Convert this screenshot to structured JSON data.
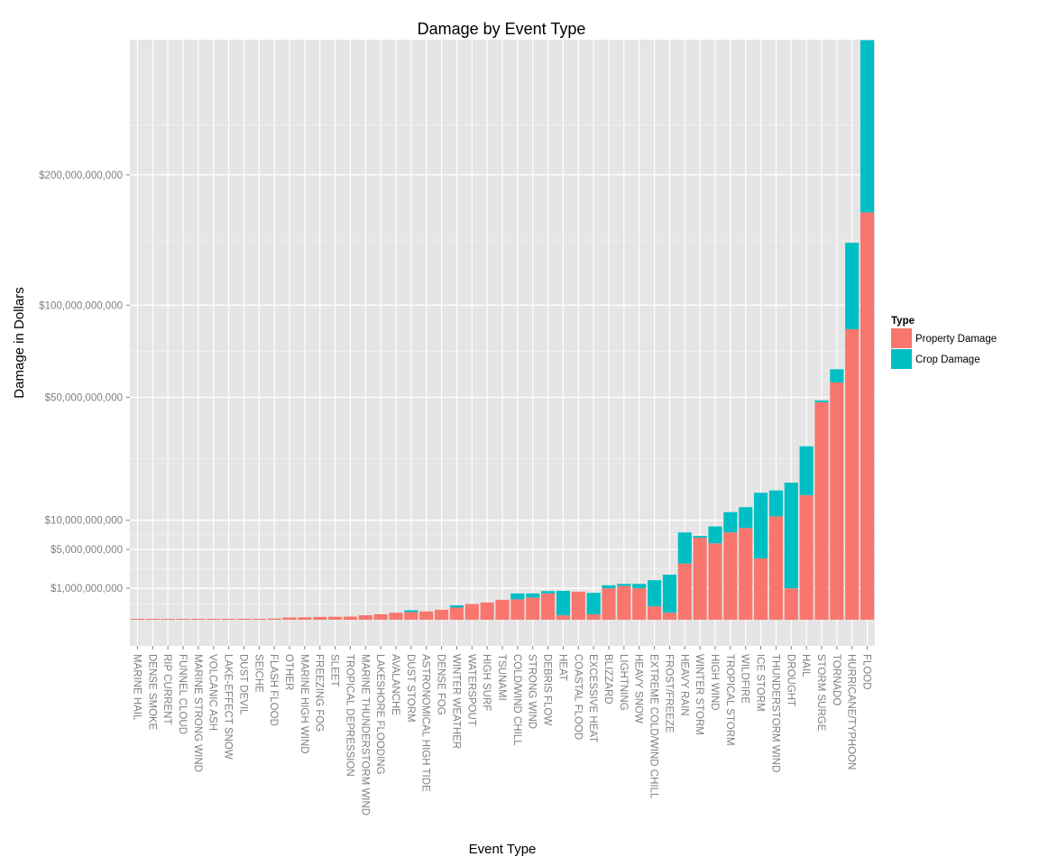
{
  "chart_data": {
    "type": "bar",
    "stacked": true,
    "title": "Damage by Event Type",
    "xlabel": "Event Type",
    "ylabel": "Damage in Dollars",
    "y_scale": "sqrt",
    "ylim": [
      0,
      340000000000
    ],
    "y_ticks": [
      1000000000,
      5000000000,
      10000000000,
      50000000000,
      100000000000,
      200000000000
    ],
    "y_tick_labels": [
      "$1,000,000,000",
      "$5,000,000,000",
      "$10,000,000,000",
      "$50,000,000,000",
      "$100,000,000,000",
      "$200,000,000,000"
    ],
    "grid": true,
    "legend_position": "right",
    "legend_title": "Type",
    "categories": [
      "MARINE HAIL",
      "DENSE SMOKE",
      "RIP CURRENT",
      "FUNNEL CLOUD",
      "MARINE STRONG WIND",
      "VOLCANIC ASH",
      "LAKE-EFFECT SNOW",
      "DUST DEVIL",
      "SEICHE",
      "FLASH FLOOD",
      "OTHER",
      "MARINE HIGH WIND",
      "FREEZING FOG",
      "SLEET",
      "TROPICAL DEPRESSION",
      "MARINE THUNDERSTORM WIND",
      "LAKESHORE FLOODING",
      "AVALANCHE",
      "DUST STORM",
      "ASTRONOMICAL HIGH TIDE",
      "DENSE FOG",
      "WINTER WEATHER",
      "WATERSPOUT",
      "HIGH SURF",
      "TSUNAMI",
      "COLD/WIND CHILL",
      "STRONG WIND",
      "DEBRIS FLOW",
      "HEAT",
      "COASTAL FLOOD",
      "EXCESSIVE HEAT",
      "BLIZZARD",
      "LIGHTNING",
      "HEAVY SNOW",
      "EXTREME COLD/WIND CHILL",
      "FROST/FREEZE",
      "HEAVY RAIN",
      "WINTER STORM",
      "HIGH WIND",
      "TROPICAL STORM",
      "WILDFIRE",
      "ICE STORM",
      "THUNDERSTORM WIND",
      "DROUGHT",
      "HAIL",
      "STORM SURGE",
      "TORNADO",
      "HURRICANE/TYPHOON",
      "FLOOD"
    ],
    "series": [
      {
        "name": "Property Damage",
        "color": "#f8766d",
        "values": [
          4000,
          100000,
          160000,
          200000,
          420000,
          500000,
          900000,
          1000000,
          1000000,
          1500000,
          5000000,
          6000000,
          8000000,
          9000000,
          10000000,
          20000000,
          30000000,
          50000000,
          60000000,
          70000000,
          100000000,
          150000000,
          250000000,
          300000000,
          400000000,
          420000000,
          500000000,
          700000000,
          20000000,
          800000000,
          30000000,
          1000000000,
          1150000000,
          1000000000,
          180000000,
          50000000,
          3200000000,
          6800000000,
          5900000000,
          7700000000,
          8500000000,
          3800000000,
          10800000000,
          1000000000,
          15700000000,
          47800000000,
          56900000000,
          85300000000,
          167700000000
        ]
      },
      {
        "name": "Crop Damage",
        "color": "#00bfc4",
        "values": [
          0,
          0,
          0,
          0,
          0,
          0,
          0,
          0,
          0,
          0,
          0,
          0,
          0,
          0,
          0,
          0,
          0,
          0,
          30000000,
          0,
          0,
          60000000,
          0,
          0,
          0,
          280000000,
          200000000,
          130000000,
          820000000,
          0,
          700000000,
          200000000,
          150000000,
          300000000,
          1400000000,
          2000000000,
          4500000000,
          300000000,
          2900000000,
          4000000000,
          4300000000,
          12500000000,
          6100000000,
          18000000000,
          14700000000,
          800000000,
          6500000000,
          58300000000,
          171800000000
        ]
      }
    ]
  }
}
